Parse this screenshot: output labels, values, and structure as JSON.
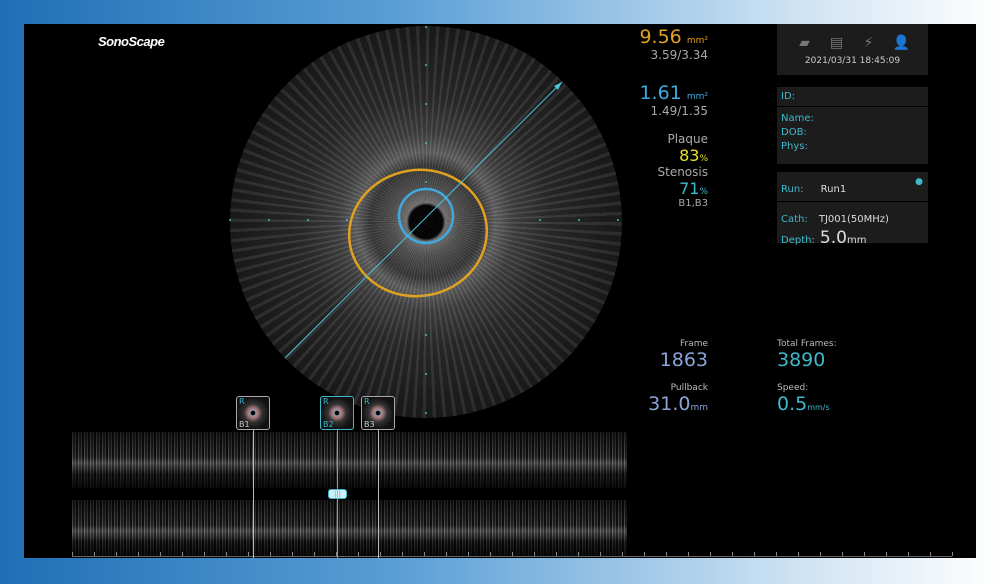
{
  "brand": "SonoScape",
  "measurements": {
    "vessel_area": "9.56",
    "vessel_unit": "mm²",
    "vessel_diam": "3.59/3.34",
    "lumen_area": "1.61",
    "lumen_unit": "mm²",
    "lumen_diam": "1.49/1.35",
    "plaque_label": "Plaque",
    "plaque_value": "83",
    "plaque_unit": "%",
    "stenosis_label": "Stenosis",
    "stenosis_value": "71",
    "stenosis_unit": "%",
    "stenosis_ref": "B1,B3"
  },
  "colors": {
    "vessel": "#e0a020",
    "lumen": "#3fa9e0",
    "plaque": "#e8e020",
    "accent": "#3fb9cc"
  },
  "status": {
    "icons": [
      "usb-icon",
      "printer-icon",
      "power-plug-icon",
      "user-icon"
    ],
    "datetime": "2021/03/31 18:45:09"
  },
  "patient": {
    "id_label": "ID:",
    "name_label": "Name:",
    "dob_label": "DOB:",
    "phys_label": "Phys:"
  },
  "run": {
    "run_label": "Run:",
    "run_value": "Run1",
    "cath_label": "Cath:",
    "cath_value": "TJ001(50MHz)",
    "depth_label": "Depth:",
    "depth_value": "5.0",
    "depth_unit": "mm"
  },
  "playback": {
    "frame_label": "Frame",
    "frame_value": "1863",
    "total_label": "Total Frames:",
    "total_value": "3890",
    "pullback_label": "Pullback",
    "pullback_value": "31.0",
    "pullback_unit": "mm",
    "speed_label": "Speed:",
    "speed_value": "0.5",
    "speed_unit": "mm/s"
  },
  "bookmarks": [
    {
      "tag": "R",
      "label": "B1"
    },
    {
      "tag": "R",
      "label": "B2",
      "selected": true
    },
    {
      "tag": "R",
      "label": "B3"
    }
  ]
}
